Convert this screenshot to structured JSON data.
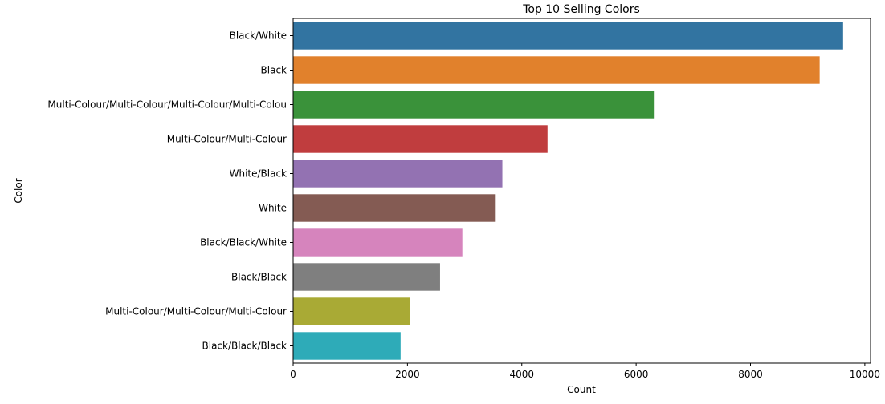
{
  "chart_data": {
    "type": "bar",
    "orientation": "horizontal",
    "title": "Top 10 Selling Colors",
    "xlabel": "Count",
    "ylabel": "Color",
    "xlim": [
      0,
      10100
    ],
    "xticks": [
      0,
      2000,
      4000,
      6000,
      8000,
      10000
    ],
    "grid": false,
    "legend": "none",
    "categories": [
      "Black/White",
      "Black",
      "Multi-Colour/Multi-Colour/Multi-Colour/Multi-Colou",
      "Multi-Colour/Multi-Colour",
      "White/Black",
      "White",
      "Black/Black/White",
      "Black/Black",
      "Multi-Colour/Multi-Colour/Multi-Colour",
      "Black/Black/Black"
    ],
    "values": [
      9620,
      9210,
      6310,
      4450,
      3660,
      3530,
      2960,
      2570,
      2050,
      1880
    ],
    "colors": [
      "#3274a1",
      "#e1812c",
      "#3a923a",
      "#c03d3e",
      "#9372b2",
      "#845b53",
      "#d684bd",
      "#7f7f7f",
      "#a9aa35",
      "#2eabb8"
    ]
  }
}
